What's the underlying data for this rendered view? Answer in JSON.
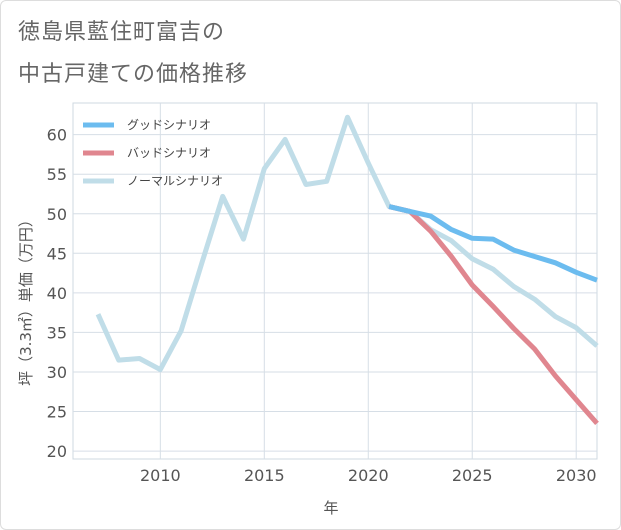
{
  "title_lines": [
    "徳島県藍住町富吉の",
    "中古戸建ての価格推移"
  ],
  "chart_data": {
    "type": "line",
    "title": "徳島県藍住町富吉の中古戸建ての価格推移",
    "xlabel": "年",
    "ylabel": "坪（3.3㎡）単価（万円）",
    "xlim": [
      2005.8,
      2031
    ],
    "ylim": [
      19,
      64
    ],
    "x_ticks": [
      2010,
      2015,
      2020,
      2025,
      2030
    ],
    "y_ticks": [
      20,
      25,
      30,
      35,
      40,
      45,
      50,
      55,
      60
    ],
    "grid": true,
    "legend_position": "top-left",
    "series": [
      {
        "name": "グッドシナリオ",
        "color": "#6cbcef",
        "x": [
          2021,
          2022,
          2023,
          2024,
          2025,
          2026,
          2027,
          2028,
          2029,
          2030,
          2031
        ],
        "values": [
          50.9,
          50.3,
          49.7,
          48.0,
          46.9,
          46.8,
          45.4,
          44.6,
          43.8,
          42.6,
          41.6
        ]
      },
      {
        "name": "バッドシナリオ",
        "color": "#e0868f",
        "x": [
          2021,
          2022,
          2023,
          2024,
          2025,
          2026,
          2027,
          2028,
          2029,
          2030,
          2031
        ],
        "values": [
          50.9,
          50.3,
          47.8,
          44.6,
          41.0,
          38.3,
          35.5,
          32.9,
          29.5,
          26.5,
          23.5
        ]
      },
      {
        "name": "ノーマルシナリオ",
        "color": "#c0dde8",
        "x": [
          2007,
          2008,
          2009,
          2010,
          2011,
          2012,
          2013,
          2014,
          2015,
          2016,
          2017,
          2018,
          2019,
          2020,
          2021,
          2022,
          2023,
          2024,
          2025,
          2026,
          2027,
          2028,
          2029,
          2030,
          2031
        ],
        "values": [
          37.3,
          31.5,
          31.7,
          30.3,
          35.2,
          43.8,
          52.2,
          46.8,
          55.7,
          59.4,
          53.7,
          54.1,
          62.2,
          56.4,
          50.9,
          50.3,
          48.0,
          46.6,
          44.3,
          43.0,
          40.8,
          39.2,
          37.0,
          35.6,
          33.3
        ]
      }
    ]
  }
}
